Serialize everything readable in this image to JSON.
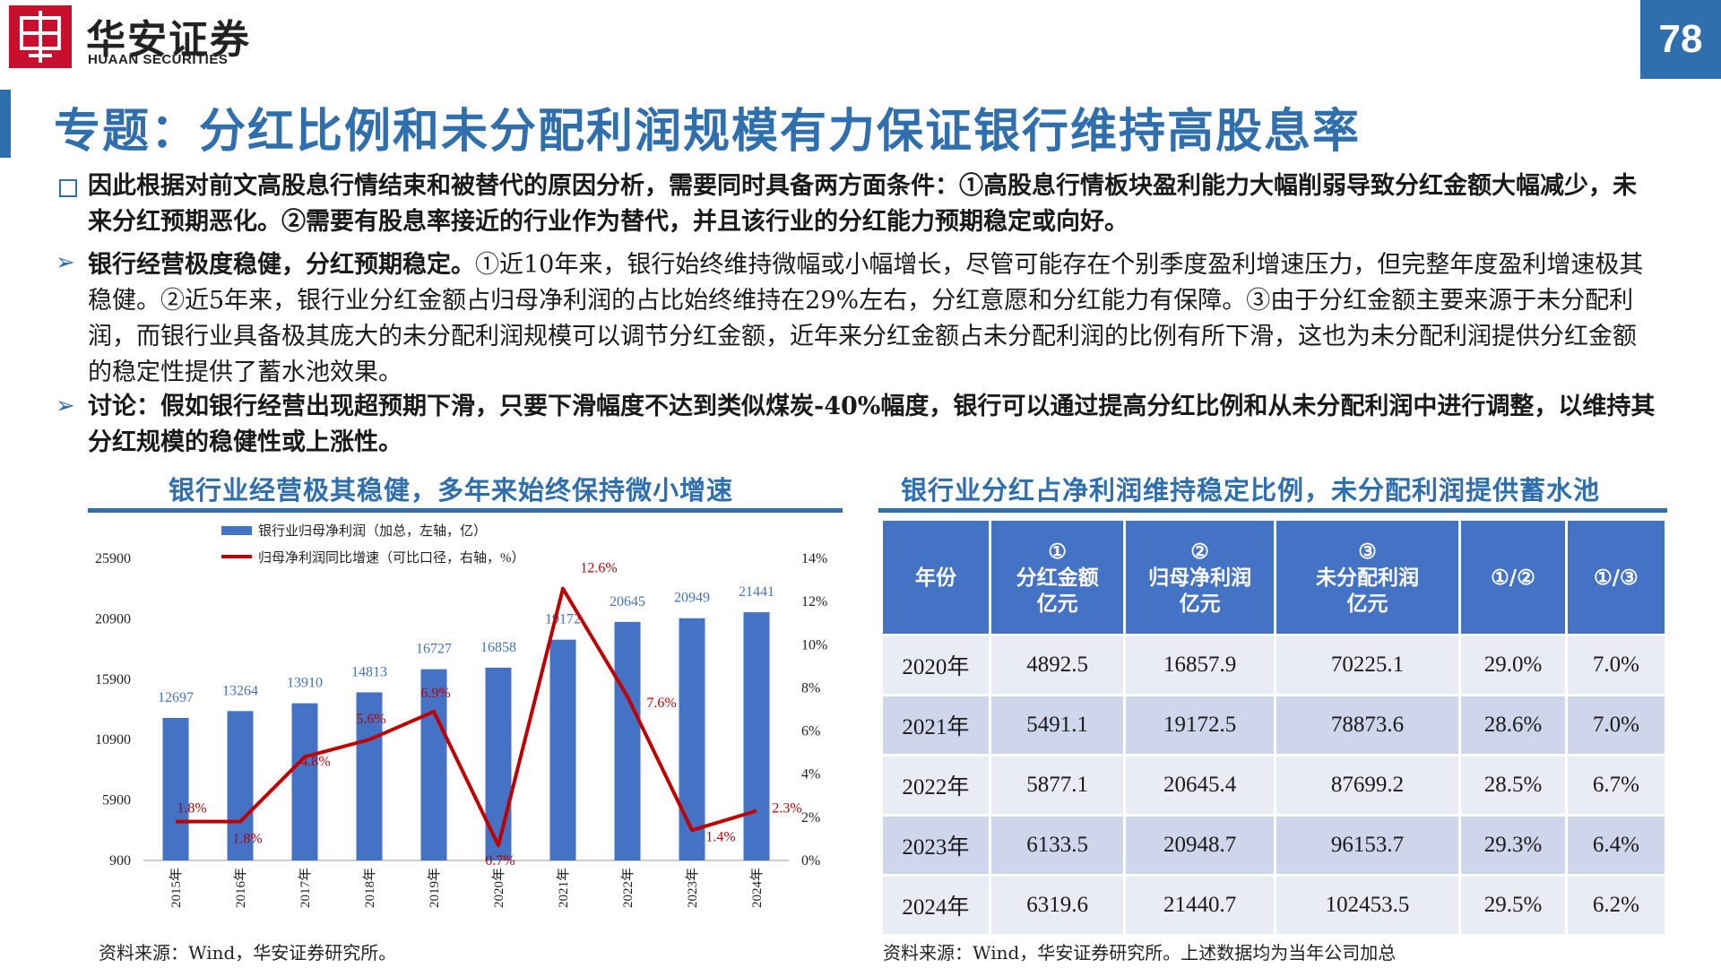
{
  "header": {
    "brand_cn": "华安证券",
    "brand_en": "HUAAN SECURITIES",
    "page_number": "78",
    "colors": {
      "brand_red": "#c8102e",
      "accent_blue": "#2f6fad"
    }
  },
  "title": "专题：分红比例和未分配利润规模有力保证银行维持高股息率",
  "bullets": [
    {
      "marker": "square",
      "text": "因此根据对前文高股息行情结束和被替代的原因分析，需要同时具备两方面条件：①高股息行情板块盈利能力大幅削弱导致分红金额大幅减少，未来分红预期恶化。②需要有股息率接近的行业作为替代，并且该行业的分红能力预期稳定或向好。"
    },
    {
      "marker": "arrow",
      "lead": "银行经营极度稳健，分红预期稳定。",
      "text": "①近10年来，银行始终维持微幅或小幅增长，尽管可能存在个别季度盈利增速压力，但完整年度盈利增速极其稳健。②近5年来，银行业分红金额占归母净利润的占比始终维持在29%左右，分红意愿和分红能力有保障。③由于分红金额主要来源于未分配利润，而银行业具备极其庞大的未分配利润规模可以调节分红金额，近年来分红金额占未分配利润的比例有所下滑，这也为未分配利润提供分红金额的稳定性提供了蓄水池效果。"
    },
    {
      "marker": "arrow",
      "text": "讨论：假如银行经营出现超预期下滑，只要下滑幅度不达到类似煤炭-40%幅度，银行可以通过提高分红比例和从未分配利润中进行调整，以维持其分红规模的稳健性或上涨性。"
    }
  ],
  "left_panel": {
    "title": "银行业经营极其稳健，多年来始终保持微小增速",
    "source": "资料来源：Wind，华安证券研究所。"
  },
  "right_panel": {
    "title": "银行业分红占净利润维持稳定比例，未分配利润提供蓄水池",
    "source": "资料来源：Wind，华安证券研究所。上述数据均为当年公司加总",
    "table": {
      "headers": [
        [
          "年份"
        ],
        [
          "①",
          "分红金额",
          "亿元"
        ],
        [
          "②",
          "归母净利润",
          "亿元"
        ],
        [
          "③",
          "未分配利润",
          "亿元"
        ],
        [
          "①/②"
        ],
        [
          "①/③"
        ]
      ],
      "rows": [
        [
          "2020年",
          "4892.5",
          "16857.9",
          "70225.1",
          "29.0%",
          "7.0%"
        ],
        [
          "2021年",
          "5491.1",
          "19172.5",
          "78873.6",
          "28.6%",
          "7.0%"
        ],
        [
          "2022年",
          "5877.1",
          "20645.4",
          "87699.2",
          "28.5%",
          "6.7%"
        ],
        [
          "2023年",
          "6133.5",
          "20948.7",
          "96153.7",
          "29.3%",
          "6.4%"
        ],
        [
          "2024年",
          "6319.6",
          "21440.7",
          "102453.5",
          "29.5%",
          "6.2%"
        ]
      ]
    }
  },
  "chart_data": {
    "type": "bar",
    "categories": [
      "2015年",
      "2016年",
      "2017年",
      "2018年",
      "2019年",
      "2020年",
      "2021年",
      "2022年",
      "2023年",
      "2024年"
    ],
    "series": [
      {
        "name": "银行业归母净利润（加总，左轴，亿）",
        "type": "bar",
        "axis": "left",
        "color": "#4472c4",
        "values": [
          12697,
          13264,
          13910,
          14813,
          16727,
          16858,
          19172,
          20645,
          20949,
          21441
        ],
        "labels": [
          "12697",
          "13264",
          "13910",
          "14813",
          "16727",
          "16858",
          "19172",
          "20645",
          "20949",
          "21441"
        ]
      },
      {
        "name": "归母净利润同比增速（可比口径，右轴，%）",
        "type": "line",
        "axis": "right",
        "color": "#c00000",
        "values": [
          1.8,
          1.8,
          4.8,
          5.6,
          6.9,
          0.7,
          12.6,
          7.6,
          1.4,
          2.3
        ],
        "labels": [
          "1.8%",
          "1.8%",
          "4.8%",
          "5.6%",
          "6.9%",
          "0.7%",
          "12.6%",
          "7.6%",
          "1.4%",
          "2.3%"
        ]
      }
    ],
    "left_axis": {
      "ylim": [
        900,
        25900
      ],
      "ticks": [
        "900",
        "5900",
        "10900",
        "15900",
        "20900",
        "25900"
      ]
    },
    "right_axis": {
      "ylim": [
        0,
        14
      ],
      "ticks": [
        "0%",
        "2%",
        "4%",
        "6%",
        "8%",
        "10%",
        "12%",
        "14%"
      ]
    },
    "legend_position": "top-left",
    "grid": false
  }
}
